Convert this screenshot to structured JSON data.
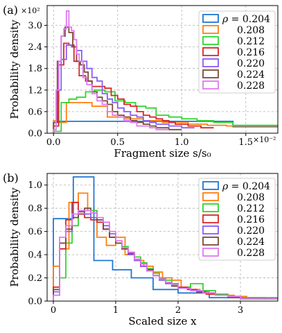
{
  "figure": {
    "panel_labels": [
      "(a)",
      "(b)"
    ]
  },
  "legend": {
    "rho_symbol": "ρ",
    "equals": " = ",
    "entries": [
      "0.204",
      "0.208",
      "0.212",
      "0.216",
      "0.220",
      "0.224",
      "0.228"
    ]
  },
  "colors": [
    "#1f77d4",
    "#ff7f0e",
    "#2fd52f",
    "#d62728",
    "#8a5cf6",
    "#7a4b3a",
    "#e377f2"
  ],
  "chart_data": [
    {
      "type": "histogram-step",
      "panel": "(a)",
      "xlabel": "Fragment size s/s₀",
      "ylabel": "Probability density",
      "xlim": [
        -0.0005,
        0.0175
      ],
      "ylim": [
        0,
        3.55
      ],
      "xticks": [
        0,
        0.005,
        0.01,
        0.015
      ],
      "xtick_labels": [
        "0.0",
        "0.5",
        "1.0",
        "1.5"
      ],
      "x_multiplier": "×10⁻²",
      "yticks": [
        0,
        0.6,
        1.2,
        1.8,
        2.4,
        3.0
      ],
      "ytick_labels": [
        "0.0",
        "0.6",
        "1.2",
        "1.8",
        "2.4",
        "3.0"
      ],
      "y_multiplier": "×10²",
      "grid": true,
      "legend_position": "upper right",
      "series": [
        {
          "name": "0.204",
          "edges": [
            0,
            0.0003,
            0.0014,
            0.0055,
            0.0072,
            0.0098,
            0.014,
            0.0175
          ],
          "values": [
            0.3,
            0.33,
            0.33,
            0.33,
            0.33,
            0.33,
            0.18
          ]
        },
        {
          "name": "0.208",
          "edges": [
            0,
            0.0003,
            0.001,
            0.002,
            0.003,
            0.0042,
            0.0055,
            0.007,
            0.0085,
            0.0105,
            0.012,
            0.0135,
            0.0155,
            0.0175
          ],
          "values": [
            0.35,
            0.3,
            0.85,
            0.85,
            0.75,
            0.45,
            0.4,
            0.35,
            0.3,
            0.25,
            0.22,
            0.2,
            0.2
          ]
        },
        {
          "name": "0.212",
          "edges": [
            0,
            0.0006,
            0.0012,
            0.0018,
            0.0025,
            0.0032,
            0.004,
            0.0048,
            0.0056,
            0.0064,
            0.0072,
            0.008,
            0.009,
            0.01,
            0.0112,
            0.0125,
            0.014,
            0.0175
          ],
          "values": [
            0.05,
            0.85,
            0.95,
            1.0,
            1.15,
            1.2,
            1.15,
            0.9,
            0.85,
            0.75,
            0.7,
            0.5,
            0.45,
            0.4,
            0.35,
            0.3,
            0.22
          ]
        },
        {
          "name": "0.216",
          "edges": [
            0,
            0.0004,
            0.0008,
            0.0012,
            0.0016,
            0.002,
            0.0025,
            0.003,
            0.0035,
            0.004,
            0.0045,
            0.005,
            0.0055,
            0.006,
            0.0065,
            0.007,
            0.0075,
            0.008,
            0.0085,
            0.009,
            0.0095,
            0.0105,
            0.0115,
            0.0125
          ],
          "values": [
            0.2,
            1.9,
            2.5,
            2.45,
            2.0,
            1.6,
            1.45,
            1.3,
            1.3,
            1.25,
            1.05,
            0.95,
            0.8,
            0.75,
            0.6,
            0.5,
            0.45,
            0.4,
            0.35,
            0.3,
            0.25,
            0.2,
            0.15
          ]
        },
        {
          "name": "0.220",
          "edges": [
            0,
            0.0003,
            0.0006,
            0.001,
            0.0014,
            0.0018,
            0.0022,
            0.0026,
            0.003,
            0.0034,
            0.0038,
            0.0042,
            0.0046,
            0.005,
            0.0055,
            0.006,
            0.0065,
            0.007,
            0.0075,
            0.008,
            0.009,
            0.01,
            0.011
          ],
          "values": [
            0.3,
            1.2,
            2.05,
            2.45,
            2.4,
            2.3,
            2.0,
            1.8,
            1.55,
            1.45,
            1.1,
            0.95,
            0.85,
            0.7,
            0.6,
            0.5,
            0.45,
            0.35,
            0.3,
            0.25,
            0.2,
            0.15
          ]
        },
        {
          "name": "0.224",
          "edges": [
            0,
            0.0003,
            0.0006,
            0.0009,
            0.0012,
            0.0015,
            0.0018,
            0.0021,
            0.0024,
            0.0027,
            0.003,
            0.0034,
            0.0038,
            0.0042,
            0.0046,
            0.005,
            0.0055,
            0.006,
            0.0065,
            0.007,
            0.0075,
            0.008,
            0.009,
            0.01
          ],
          "values": [
            0.3,
            2.0,
            2.7,
            2.95,
            2.8,
            2.4,
            2.0,
            1.9,
            1.7,
            1.45,
            1.15,
            1.0,
            0.9,
            0.8,
            0.6,
            0.5,
            0.45,
            0.35,
            0.3,
            0.25,
            0.2,
            0.15,
            0.1
          ]
        },
        {
          "name": "0.228",
          "edges": [
            0,
            0.0002,
            0.0004,
            0.0006,
            0.0008,
            0.001,
            0.0012,
            0.0014,
            0.0016,
            0.0018,
            0.002,
            0.0023,
            0.0026,
            0.003,
            0.0034,
            0.0038,
            0.0042,
            0.0046,
            0.005,
            0.0055,
            0.006,
            0.0065,
            0.007,
            0.0075,
            0.008,
            0.0085,
            0.009
          ],
          "values": [
            0.1,
            1.2,
            2.0,
            2.7,
            2.9,
            3.4,
            2.95,
            2.85,
            2.6,
            2.2,
            2.0,
            1.55,
            1.35,
            1.1,
            0.9,
            0.8,
            0.6,
            0.5,
            0.45,
            0.35,
            0.3,
            0.2,
            0.2,
            0.15,
            0.1,
            0.1
          ]
        }
      ]
    },
    {
      "type": "histogram-step",
      "panel": "(b)",
      "xlabel": "Scaled size x",
      "ylabel": "Probability density",
      "xlim": [
        -0.1,
        3.6
      ],
      "ylim": [
        0,
        1.1
      ],
      "xticks": [
        0,
        1,
        2,
        3
      ],
      "xtick_labels": [
        "0",
        "1",
        "2",
        "3"
      ],
      "yticks": [
        0,
        0.2,
        0.4,
        0.6,
        0.8,
        1.0
      ],
      "ytick_labels": [
        "0.0",
        "0.2",
        "0.4",
        "0.6",
        "0.8",
        "1.0"
      ],
      "grid": true,
      "legend_position": "upper right",
      "series": [
        {
          "name": "0.204",
          "edges": [
            0,
            0.32,
            0.65,
            0.95,
            1.25,
            1.6,
            2.0,
            2.5,
            3.4
          ],
          "values": [
            0.71,
            1.07,
            0.35,
            0.27,
            0.2,
            0.1,
            0.07,
            0.03
          ]
        },
        {
          "name": "0.208",
          "edges": [
            0,
            0.1,
            0.25,
            0.4,
            0.55,
            0.7,
            0.85,
            1.0,
            1.15,
            1.3,
            1.45,
            1.6,
            1.75,
            1.9,
            2.05,
            2.2,
            2.35,
            2.5,
            2.7,
            2.9,
            3.1,
            3.3,
            3.6
          ],
          "values": [
            0.3,
            0.45,
            0.85,
            0.93,
            0.78,
            0.55,
            0.48,
            0.55,
            0.4,
            0.35,
            0.3,
            0.25,
            0.2,
            0.18,
            0.12,
            0.1,
            0.08,
            0.06,
            0.05,
            0.04,
            0.03,
            0.02
          ]
        },
        {
          "name": "0.212",
          "edges": [
            0,
            0.1,
            0.2,
            0.3,
            0.4,
            0.5,
            0.6,
            0.7,
            0.8,
            0.9,
            1.0,
            1.1,
            1.2,
            1.3,
            1.4,
            1.5,
            1.6,
            1.7,
            1.8,
            1.9,
            2.0,
            2.2,
            2.4,
            2.6,
            2.8,
            3.0,
            3.6
          ],
          "values": [
            0.05,
            0.2,
            0.5,
            0.65,
            0.75,
            0.78,
            0.78,
            0.7,
            0.62,
            0.55,
            0.5,
            0.47,
            0.42,
            0.38,
            0.33,
            0.28,
            0.24,
            0.2,
            0.18,
            0.15,
            0.12,
            0.15,
            0.09,
            0.06,
            0.04,
            0.03
          ]
        },
        {
          "name": "0.216",
          "edges": [
            0,
            0.1,
            0.2,
            0.3,
            0.4,
            0.5,
            0.6,
            0.7,
            0.8,
            0.9,
            1.0,
            1.1,
            1.2,
            1.3,
            1.4,
            1.5,
            1.6,
            1.7,
            1.8,
            1.9,
            2.0,
            2.15,
            2.3,
            2.45,
            2.6,
            2.8,
            3.0,
            3.6
          ],
          "values": [
            0.12,
            0.45,
            0.7,
            0.85,
            0.75,
            0.72,
            0.7,
            0.68,
            0.62,
            0.55,
            0.5,
            0.45,
            0.4,
            0.36,
            0.3,
            0.27,
            0.22,
            0.19,
            0.16,
            0.14,
            0.12,
            0.1,
            0.08,
            0.06,
            0.05,
            0.04,
            0.02
          ]
        },
        {
          "name": "0.220",
          "edges": [
            0,
            0.1,
            0.2,
            0.3,
            0.4,
            0.5,
            0.6,
            0.7,
            0.8,
            0.9,
            1.0,
            1.1,
            1.2,
            1.3,
            1.4,
            1.5,
            1.6,
            1.7,
            1.8,
            1.9,
            2.0,
            2.2,
            2.4,
            2.6,
            2.8,
            3.0,
            3.6
          ],
          "values": [
            0.08,
            0.5,
            0.6,
            0.72,
            0.78,
            0.75,
            0.72,
            0.7,
            0.65,
            0.58,
            0.5,
            0.45,
            0.4,
            0.35,
            0.3,
            0.26,
            0.22,
            0.18,
            0.15,
            0.13,
            0.11,
            0.09,
            0.07,
            0.05,
            0.04,
            0.02
          ]
        },
        {
          "name": "0.224",
          "edges": [
            0,
            0.1,
            0.2,
            0.3,
            0.4,
            0.5,
            0.6,
            0.7,
            0.8,
            0.9,
            1.0,
            1.1,
            1.2,
            1.3,
            1.4,
            1.5,
            1.6,
            1.7,
            1.8,
            1.9,
            2.0,
            2.2,
            2.4,
            2.6,
            2.8,
            3.0,
            3.6
          ],
          "values": [
            0.1,
            0.5,
            0.62,
            0.72,
            0.77,
            0.8,
            0.76,
            0.7,
            0.62,
            0.55,
            0.5,
            0.45,
            0.41,
            0.36,
            0.32,
            0.27,
            0.22,
            0.19,
            0.16,
            0.13,
            0.11,
            0.09,
            0.07,
            0.05,
            0.03,
            0.02
          ]
        },
        {
          "name": "0.228",
          "edges": [
            0,
            0.1,
            0.2,
            0.3,
            0.4,
            0.5,
            0.6,
            0.7,
            0.8,
            0.9,
            1.0,
            1.1,
            1.2,
            1.3,
            1.4,
            1.5,
            1.6,
            1.7,
            1.8,
            1.9,
            2.0,
            2.2,
            2.4,
            2.6,
            2.8,
            3.0,
            3.6
          ],
          "values": [
            0.05,
            0.55,
            0.65,
            0.75,
            0.78,
            0.78,
            0.76,
            0.72,
            0.68,
            0.6,
            0.52,
            0.46,
            0.42,
            0.36,
            0.32,
            0.26,
            0.22,
            0.19,
            0.16,
            0.14,
            0.11,
            0.09,
            0.07,
            0.05,
            0.04,
            0.02
          ]
        }
      ]
    }
  ]
}
